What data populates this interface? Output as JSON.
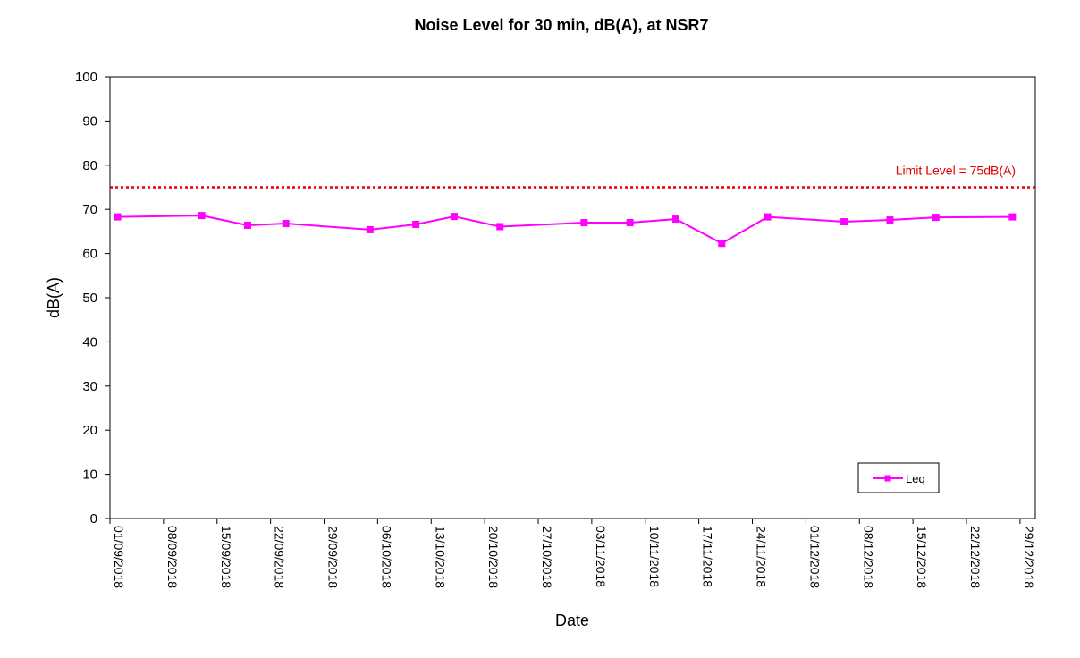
{
  "chart_data": {
    "type": "line",
    "title": "Noise Level for 30 min, dB(A), at NSR7",
    "xlabel": "Date",
    "ylabel": "dB(A)",
    "ylim": [
      0,
      100
    ],
    "yticks": [
      0,
      10,
      20,
      30,
      40,
      50,
      60,
      70,
      80,
      90,
      100
    ],
    "xlim": [
      "2018-09-01",
      "2018-12-31"
    ],
    "xtick_labels": [
      "01/09/2018",
      "08/09/2018",
      "15/09/2018",
      "22/09/2018",
      "29/09/2018",
      "06/10/2018",
      "13/10/2018",
      "20/10/2018",
      "27/10/2018",
      "03/11/2018",
      "10/11/2018",
      "17/11/2018",
      "24/11/2018",
      "01/12/2018",
      "08/12/2018",
      "15/12/2018",
      "22/12/2018",
      "29/12/2018"
    ],
    "xtick_dates": [
      "2018-09-01",
      "2018-09-08",
      "2018-09-15",
      "2018-09-22",
      "2018-09-29",
      "2018-10-06",
      "2018-10-13",
      "2018-10-20",
      "2018-10-27",
      "2018-11-03",
      "2018-11-10",
      "2018-11-17",
      "2018-11-24",
      "2018-12-01",
      "2018-12-08",
      "2018-12-15",
      "2018-12-22",
      "2018-12-29"
    ],
    "grid": false,
    "legend": {
      "position": "bottom-right",
      "entries": [
        "Leq"
      ]
    },
    "series": [
      {
        "name": "Leq",
        "color": "#FF00FF",
        "marker": "square",
        "points": [
          {
            "x": "2018-09-02",
            "y": 68.3
          },
          {
            "x": "2018-09-13",
            "y": 68.6
          },
          {
            "x": "2018-09-19",
            "y": 66.4
          },
          {
            "x": "2018-09-24",
            "y": 66.8
          },
          {
            "x": "2018-10-05",
            "y": 65.4
          },
          {
            "x": "2018-10-11",
            "y": 66.6
          },
          {
            "x": "2018-10-16",
            "y": 68.4
          },
          {
            "x": "2018-10-22",
            "y": 66.1
          },
          {
            "x": "2018-11-02",
            "y": 67.0
          },
          {
            "x": "2018-11-08",
            "y": 67.0
          },
          {
            "x": "2018-11-14",
            "y": 67.8
          },
          {
            "x": "2018-11-20",
            "y": 62.3
          },
          {
            "x": "2018-11-26",
            "y": 68.3
          },
          {
            "x": "2018-12-06",
            "y": 67.2
          },
          {
            "x": "2018-12-12",
            "y": 67.6
          },
          {
            "x": "2018-12-18",
            "y": 68.2
          },
          {
            "x": "2018-12-28",
            "y": 68.3
          }
        ]
      }
    ],
    "reference_line": {
      "value": 75,
      "label": "Limit Level = 75dB(A)",
      "color": "#E00000",
      "style": "dotted"
    }
  }
}
